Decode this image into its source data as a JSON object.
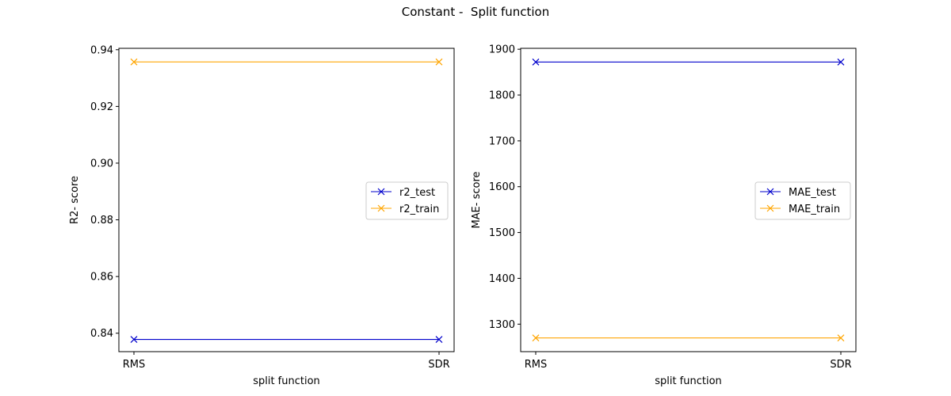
{
  "figure": {
    "suptitle": "Constant -  Split function"
  },
  "chart_data": [
    {
      "type": "line",
      "categories": [
        "RMS",
        "SDR"
      ],
      "xlabel": "split function",
      "ylabel": "R2- score",
      "ylim": [
        0.8335,
        0.9405
      ],
      "yticks": [
        "0.84",
        "0.86",
        "0.88",
        "0.90",
        "0.92",
        "0.94"
      ],
      "ytick_values": [
        0.84,
        0.86,
        0.88,
        0.9,
        0.92,
        0.94
      ],
      "grid": false,
      "legend_position": "center-right",
      "series": [
        {
          "name": "r2_test",
          "values": [
            0.8378,
            0.8378
          ],
          "color": "#0000cc",
          "marker": "x"
        },
        {
          "name": "r2_train",
          "values": [
            0.9357,
            0.9357
          ],
          "color": "#ffa500",
          "marker": "x"
        }
      ]
    },
    {
      "type": "line",
      "categories": [
        "RMS",
        "SDR"
      ],
      "xlabel": "split function",
      "ylabel": "MAE- score",
      "ylim": [
        1240,
        1902
      ],
      "yticks": [
        "1300",
        "1400",
        "1500",
        "1600",
        "1700",
        "1800",
        "1900"
      ],
      "ytick_values": [
        1300,
        1400,
        1500,
        1600,
        1700,
        1800,
        1900
      ],
      "grid": false,
      "legend_position": "center-right",
      "series": [
        {
          "name": "MAE_test",
          "values": [
            1872,
            1872
          ],
          "color": "#0000cc",
          "marker": "x"
        },
        {
          "name": "MAE_train",
          "values": [
            1270,
            1270
          ],
          "color": "#ffa500",
          "marker": "x"
        }
      ]
    }
  ]
}
